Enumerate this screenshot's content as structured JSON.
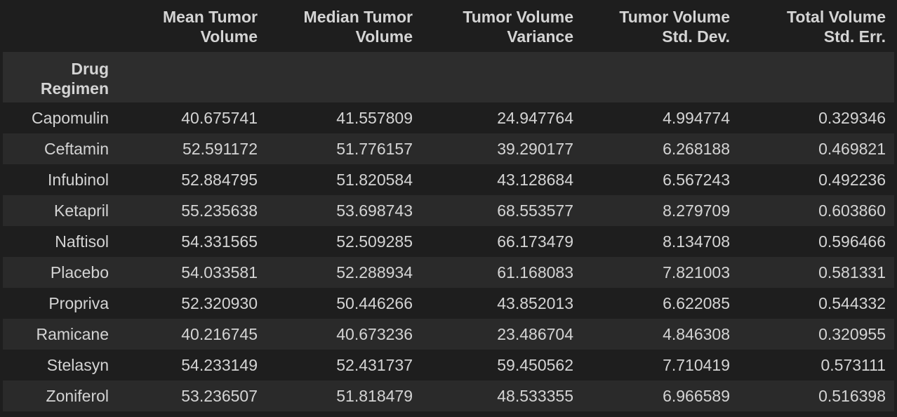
{
  "table": {
    "columns": [
      [
        "Mean Tumor",
        "Volume"
      ],
      [
        "Median Tumor",
        "Volume"
      ],
      [
        "Tumor Volume",
        "Variance"
      ],
      [
        "Tumor Volume",
        "Std. Dev."
      ],
      [
        "Total Volume",
        "Std. Err."
      ]
    ],
    "index_name": [
      "Drug",
      "Regimen"
    ],
    "rows": [
      {
        "label": "Capomulin",
        "values": [
          "40.675741",
          "41.557809",
          "24.947764",
          "4.994774",
          "0.329346"
        ]
      },
      {
        "label": "Ceftamin",
        "values": [
          "52.591172",
          "51.776157",
          "39.290177",
          "6.268188",
          "0.469821"
        ]
      },
      {
        "label": "Infubinol",
        "values": [
          "52.884795",
          "51.820584",
          "43.128684",
          "6.567243",
          "0.492236"
        ]
      },
      {
        "label": "Ketapril",
        "values": [
          "55.235638",
          "53.698743",
          "68.553577",
          "8.279709",
          "0.603860"
        ]
      },
      {
        "label": "Naftisol",
        "values": [
          "54.331565",
          "52.509285",
          "66.173479",
          "8.134708",
          "0.596466"
        ]
      },
      {
        "label": "Placebo",
        "values": [
          "54.033581",
          "52.288934",
          "61.168083",
          "7.821003",
          "0.581331"
        ]
      },
      {
        "label": "Propriva",
        "values": [
          "52.320930",
          "50.446266",
          "43.852013",
          "6.622085",
          "0.544332"
        ]
      },
      {
        "label": "Ramicane",
        "values": [
          "40.216745",
          "40.673236",
          "23.486704",
          "4.846308",
          "0.320955"
        ]
      },
      {
        "label": "Stelasyn",
        "values": [
          "54.233149",
          "52.431737",
          "59.450562",
          "7.710419",
          "0.573111"
        ]
      },
      {
        "label": "Zoniferol",
        "values": [
          "53.236507",
          "51.818479",
          "48.533355",
          "6.966589",
          "0.516398"
        ]
      }
    ]
  },
  "colors": {
    "background": "#1e1e1e",
    "row_alt": "#2a2a2a",
    "header_band": "#2d2d2d",
    "text": "#d4d4d4"
  }
}
